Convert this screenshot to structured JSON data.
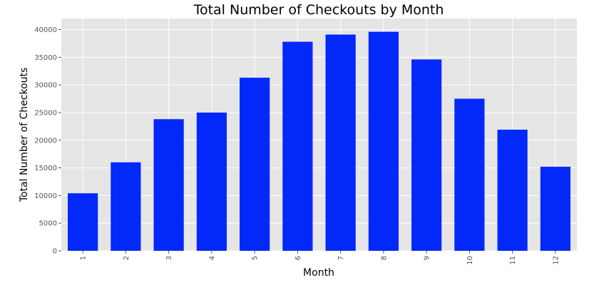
{
  "chart_data": {
    "type": "bar",
    "title": "Total Number of Checkouts by Month",
    "xlabel": "Month",
    "ylabel": "Total Number of Checkouts",
    "categories": [
      "1",
      "2",
      "3",
      "4",
      "5",
      "6",
      "7",
      "8",
      "9",
      "10",
      "11",
      "12"
    ],
    "values": [
      10400,
      16000,
      23800,
      25000,
      31300,
      37800,
      39100,
      39600,
      34600,
      27500,
      21900,
      15200
    ],
    "ylim": [
      0,
      42000
    ],
    "yticks": [
      0,
      5000,
      10000,
      15000,
      20000,
      25000,
      30000,
      35000,
      40000
    ],
    "grid": true,
    "x_tick_rotation": "vertical",
    "colors": {
      "bar": "#0328fa",
      "plot_background": "#e5e5e5",
      "grid": "#ffffff"
    }
  }
}
